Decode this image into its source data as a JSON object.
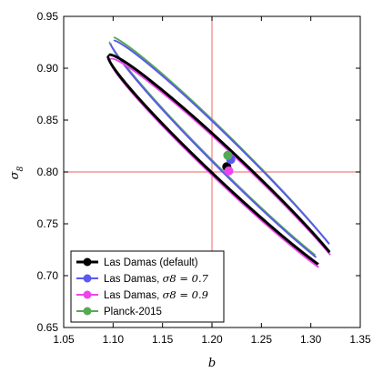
{
  "chart_data": {
    "type": "scatter",
    "xlabel": "b",
    "ylabel": "σ_8",
    "xlim": [
      1.05,
      1.35
    ],
    "ylim": [
      0.65,
      0.95
    ],
    "xticks": [
      "1.05",
      "1.10",
      "1.15",
      "1.20",
      "1.25",
      "1.30",
      "1.35"
    ],
    "yticks": [
      "0.65",
      "0.70",
      "0.75",
      "0.80",
      "0.85",
      "0.90",
      "0.95"
    ],
    "reference_lines": {
      "x": 1.2,
      "y": 0.8,
      "color": "#f08080"
    },
    "legend_position": "lower-left",
    "series": [
      {
        "name": "Las Damas (default)",
        "color": "#000000",
        "point": [
          1.215,
          0.805
        ],
        "ellipse": {
          "center": [
            1.215,
            0.805
          ],
          "corner_a": [
            1.097,
            0.91
          ],
          "corner_b": [
            1.333,
            0.698
          ]
        }
      },
      {
        "name": "Las Damas, σ_8 = 0.7",
        "name_prefix": "Las Damas, ",
        "name_math": "σ8 = 0.7",
        "color": "#5a5aee",
        "point": [
          1.219,
          0.812
        ],
        "ellipse": {
          "center": [
            1.219,
            0.812
          ],
          "corner_a": [
            1.098,
            0.925
          ],
          "corner_b": [
            1.336,
            0.7
          ]
        }
      },
      {
        "name": "Las Damas, σ_8 = 0.9",
        "name_prefix": "Las Damas, ",
        "name_math": "σ8 = 0.9",
        "color": "#ee44ee",
        "point": [
          1.217,
          0.801
        ],
        "ellipse": {
          "center": [
            1.217,
            0.801
          ],
          "corner_a": [
            1.096,
            0.905
          ],
          "corner_b": [
            1.332,
            0.693
          ]
        }
      },
      {
        "name": "Planck-2015",
        "color": "#55aa55",
        "point": [
          1.216,
          0.816
        ],
        "ellipse": {
          "center": [
            1.216,
            0.816
          ],
          "corner_a": [
            1.097,
            0.928
          ],
          "corner_b": [
            1.335,
            0.702
          ]
        }
      }
    ]
  }
}
